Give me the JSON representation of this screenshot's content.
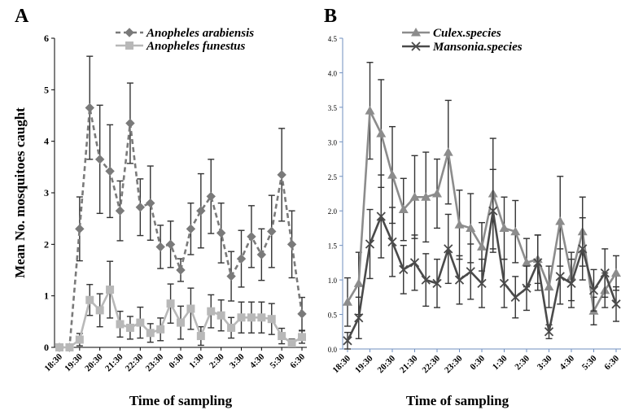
{
  "chart_data": [
    {
      "type": "line",
      "panel_label": "A",
      "xlabel": "Time of sampling",
      "ylabel": "Mean No. mosquitoes caught",
      "ylim": [
        0,
        6
      ],
      "yticks": [
        "0",
        "1",
        "2",
        "3",
        "4",
        "5",
        "6"
      ],
      "x": [
        "18:30",
        "19:00",
        "19:30",
        "20:00",
        "20:30",
        "21:00",
        "21:30",
        "22:00",
        "22:30",
        "23:00",
        "23:30",
        "0:00",
        "0:30",
        "1:00",
        "1:30",
        "2:00",
        "2:30",
        "3:00",
        "3:30",
        "4:00",
        "4:30",
        "5:00",
        "5:30",
        "6:00",
        "6:30"
      ],
      "xtick_labels": [
        "18:30",
        "19:30",
        "20:30",
        "21:30",
        "22:30",
        "23:30",
        "0:30",
        "1:30",
        "2:30",
        "3:30",
        "4:30",
        "5:30",
        "6:30"
      ],
      "legend_position": "top-right",
      "series": [
        {
          "name": "Anopheles arabiensis",
          "color": "#7a7a7a",
          "line": "dashed",
          "marker": "diamond",
          "values": [
            0,
            0,
            2.3,
            4.65,
            3.65,
            3.42,
            2.65,
            4.35,
            2.72,
            2.8,
            1.95,
            2.0,
            1.5,
            2.3,
            2.65,
            2.93,
            2.22,
            1.38,
            1.72,
            2.15,
            1.8,
            2.25,
            3.35,
            2.0,
            0.65
          ],
          "errors": [
            0,
            0,
            0.62,
            1.0,
            1.05,
            0.9,
            0.58,
            0.78,
            0.55,
            0.72,
            0.42,
            0.45,
            0.22,
            0.5,
            0.72,
            0.72,
            0.58,
            0.48,
            0.55,
            0.6,
            0.5,
            0.7,
            0.9,
            0.65,
            0.32
          ]
        },
        {
          "name": "Anopheles funestus",
          "color": "#b8b8b8",
          "line": "solid",
          "marker": "square",
          "values": [
            0,
            0,
            0.15,
            0.92,
            0.72,
            1.12,
            0.45,
            0.38,
            0.48,
            0.28,
            0.35,
            0.85,
            0.48,
            0.75,
            0.22,
            0.7,
            0.62,
            0.38,
            0.58,
            0.58,
            0.58,
            0.55,
            0.22,
            0.08,
            0.2
          ],
          "errors": [
            0,
            0,
            0.12,
            0.3,
            0.32,
            0.55,
            0.25,
            0.22,
            0.3,
            0.18,
            0.22,
            0.38,
            0.32,
            0.4,
            0.18,
            0.32,
            0.3,
            0.2,
            0.3,
            0.3,
            0.3,
            0.3,
            0.15,
            0.08,
            0.12
          ]
        }
      ]
    },
    {
      "type": "line",
      "panel_label": "B",
      "xlabel": "Time of sampling",
      "ylabel": "",
      "ylim": [
        0,
        4.5
      ],
      "yticks": [
        "0.0",
        "0.5",
        "1.0",
        "1.5",
        "2.0",
        "2.5",
        "3.0",
        "3.5",
        "4.0",
        "4.5"
      ],
      "x": [
        "18:30",
        "19:00",
        "19:30",
        "20:00",
        "20:30",
        "21:00",
        "21:30",
        "22:00",
        "22:30",
        "23:00",
        "23:30",
        "0:00",
        "0:30",
        "1:00",
        "1:30",
        "2:00",
        "2:30",
        "3:00",
        "3:30",
        "4:00",
        "4:30",
        "5:00",
        "5:30",
        "6:00",
        "6:30"
      ],
      "xtick_labels": [
        "18:30",
        "19:30",
        "20:30",
        "21:30",
        "22:30",
        "23:30",
        "0:30",
        "1:30",
        "2:30",
        "3:30",
        "4:30",
        "5:30",
        "6:30"
      ],
      "legend_position": "top-right",
      "series": [
        {
          "name": "Culex.species",
          "color": "#8c8c8c",
          "line": "solid",
          "marker": "triangle",
          "values": [
            0.68,
            0.95,
            3.45,
            3.12,
            2.52,
            2.02,
            2.2,
            2.2,
            2.25,
            2.85,
            1.8,
            1.75,
            1.48,
            2.25,
            1.75,
            1.7,
            1.25,
            1.3,
            0.9,
            1.85,
            1.05,
            1.7,
            0.55,
            0.85,
            1.1
          ],
          "errors": [
            0.35,
            0.45,
            0.7,
            0.78,
            0.7,
            0.45,
            0.6,
            0.65,
            0.5,
            0.75,
            0.5,
            0.5,
            0.35,
            0.8,
            0.45,
            0.45,
            0.35,
            0.35,
            0.3,
            0.65,
            0.35,
            0.5,
            0.2,
            0.25,
            0.25
          ]
        },
        {
          "name": "Mansonia.species",
          "color": "#4a4a4a",
          "line": "solid",
          "marker": "x",
          "values": [
            0.12,
            0.45,
            1.52,
            1.92,
            1.55,
            1.15,
            1.25,
            1.0,
            0.95,
            1.45,
            1.0,
            1.12,
            0.95,
            2.0,
            0.95,
            0.75,
            0.88,
            1.25,
            0.25,
            1.05,
            0.95,
            1.45,
            0.85,
            1.1,
            0.65
          ],
          "errors": [
            0.12,
            0.3,
            0.5,
            0.6,
            0.5,
            0.35,
            0.4,
            0.38,
            0.35,
            0.5,
            0.35,
            0.4,
            0.35,
            0.6,
            0.35,
            0.3,
            0.32,
            0.4,
            0.1,
            0.4,
            0.35,
            0.45,
            0.3,
            0.35,
            0.25
          ]
        }
      ]
    }
  ]
}
